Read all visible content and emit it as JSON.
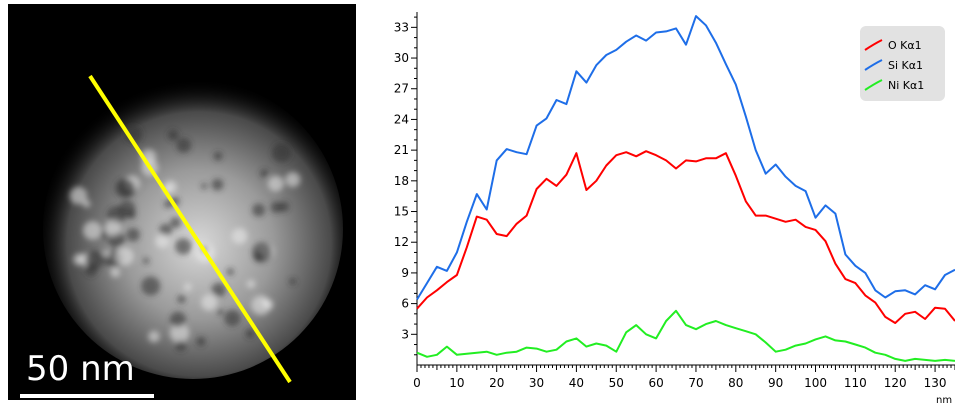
{
  "stem_image": {
    "scale_bar_label": "50 nm",
    "line_color": "#ffff00",
    "background_color": "#000000"
  },
  "chart_data": {
    "type": "line",
    "title": "",
    "xlabel": "",
    "ylabel": "",
    "x_unit_label": "nm",
    "xlim": [
      0,
      135
    ],
    "ylim": [
      0,
      34.5
    ],
    "x_ticks": [
      0,
      10,
      20,
      30,
      40,
      50,
      60,
      70,
      80,
      90,
      100,
      110,
      120,
      130
    ],
    "y_ticks": [
      3,
      6,
      9,
      12,
      15,
      18,
      21,
      24,
      27,
      30,
      33
    ],
    "legend_position": "top-right",
    "grid": false,
    "series": [
      {
        "name": "O Kα1",
        "color": "#ff0000",
        "x": [
          0,
          2.5,
          5,
          7.5,
          10,
          12.5,
          15,
          17.5,
          20,
          22.5,
          25,
          27.5,
          30,
          32.5,
          35,
          37.5,
          40,
          42.5,
          45,
          47.5,
          50,
          52.5,
          55,
          57.5,
          60,
          62.5,
          65,
          67.5,
          70,
          72.5,
          75,
          77.5,
          80,
          82.5,
          85,
          87.5,
          90,
          92.5,
          95,
          97.5,
          100,
          102.5,
          105,
          107.5,
          110,
          112.5,
          115,
          117.5,
          120,
          122.5,
          125,
          127.5,
          130,
          132.5,
          135
        ],
        "values": [
          5.5,
          6.6,
          7.3,
          8.1,
          8.8,
          11.5,
          14.5,
          14.2,
          12.8,
          12.6,
          13.8,
          14.6,
          17.2,
          18.2,
          17.5,
          18.6,
          20.7,
          17.1,
          18.0,
          19.5,
          20.5,
          20.8,
          20.4,
          20.9,
          20.5,
          20.0,
          19.2,
          20.0,
          19.9,
          20.2,
          20.2,
          20.7,
          18.5,
          16.0,
          14.6,
          14.6,
          14.3,
          14.0,
          14.2,
          13.5,
          13.2,
          12.1,
          9.9,
          8.4,
          8.0,
          6.8,
          6.1,
          4.7,
          4.1,
          5.0,
          5.2,
          4.5,
          5.6,
          5.5,
          4.3
        ]
      },
      {
        "name": "Si Kα1",
        "color": "#1e6ee8",
        "x": [
          0,
          2.5,
          5,
          7.5,
          10,
          12.5,
          15,
          17.5,
          20,
          22.5,
          25,
          27.5,
          30,
          32.5,
          35,
          37.5,
          40,
          42.5,
          45,
          47.5,
          50,
          52.5,
          55,
          57.5,
          60,
          62.5,
          65,
          67.5,
          70,
          72.5,
          75,
          77.5,
          80,
          82.5,
          85,
          87.5,
          90,
          92.5,
          95,
          97.5,
          100,
          102.5,
          105,
          107.5,
          110,
          112.5,
          115,
          117.5,
          120,
          122.5,
          125,
          127.5,
          130,
          132.5,
          135
        ],
        "values": [
          6.4,
          8.0,
          9.6,
          9.2,
          11.0,
          14.0,
          16.7,
          15.2,
          20.0,
          21.1,
          20.8,
          20.6,
          23.4,
          24.1,
          25.9,
          25.5,
          28.7,
          27.6,
          29.3,
          30.3,
          30.8,
          31.6,
          32.2,
          31.7,
          32.5,
          32.6,
          32.9,
          31.3,
          34.1,
          33.2,
          31.5,
          29.4,
          27.4,
          24.3,
          21.0,
          18.7,
          19.6,
          18.4,
          17.5,
          17.0,
          14.4,
          15.6,
          14.8,
          10.8,
          9.7,
          9.0,
          7.3,
          6.6,
          7.2,
          7.3,
          6.9,
          7.8,
          7.4,
          8.8,
          9.3
        ]
      },
      {
        "name": "Ni Kα1",
        "color": "#22ee22",
        "x": [
          0,
          2.5,
          5,
          7.5,
          10,
          12.5,
          15,
          17.5,
          20,
          22.5,
          25,
          27.5,
          30,
          32.5,
          35,
          37.5,
          40,
          42.5,
          45,
          47.5,
          50,
          52.5,
          55,
          57.5,
          60,
          62.5,
          65,
          67.5,
          70,
          72.5,
          75,
          77.5,
          80,
          82.5,
          85,
          87.5,
          90,
          92.5,
          95,
          97.5,
          100,
          102.5,
          105,
          107.5,
          110,
          112.5,
          115,
          117.5,
          120,
          122.5,
          125,
          127.5,
          130,
          132.5,
          135
        ],
        "values": [
          1.2,
          0.8,
          1.0,
          1.8,
          1.0,
          1.1,
          1.2,
          1.3,
          1.0,
          1.2,
          1.3,
          1.7,
          1.6,
          1.3,
          1.5,
          2.3,
          2.6,
          1.8,
          2.1,
          1.9,
          1.3,
          3.2,
          3.9,
          3.0,
          2.6,
          4.3,
          5.3,
          3.9,
          3.5,
          4.0,
          4.3,
          3.9,
          3.6,
          3.3,
          3.0,
          2.2,
          1.3,
          1.5,
          1.9,
          2.1,
          2.5,
          2.8,
          2.4,
          2.3,
          2.0,
          1.7,
          1.2,
          1.0,
          0.6,
          0.4,
          0.6,
          0.5,
          0.4,
          0.5,
          0.4
        ]
      }
    ]
  }
}
